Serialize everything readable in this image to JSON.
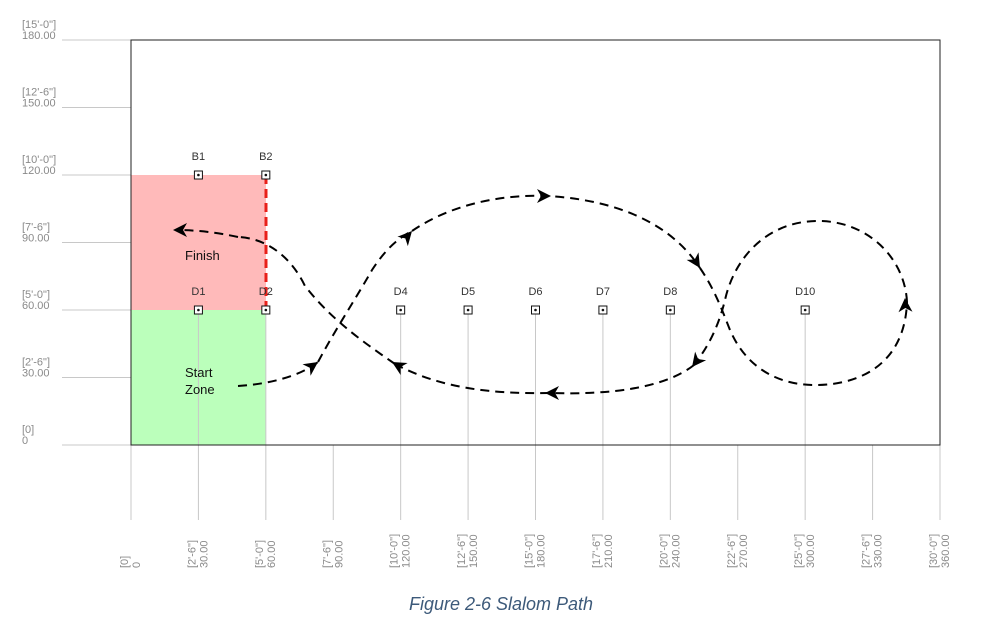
{
  "figure": {
    "caption": "Figure 2-6 Slalom Path"
  },
  "axes": {
    "x_ticks": [
      {
        "ft": "[0]",
        "in": "0",
        "value": 0
      },
      {
        "ft": "[2'-6\"]",
        "in": "30.00",
        "value": 30
      },
      {
        "ft": "[5'-0\"]",
        "in": "60.00",
        "value": 60
      },
      {
        "ft": "[7'-6\"]",
        "in": "90.00",
        "value": 90
      },
      {
        "ft": "[10'-0\"]",
        "in": "120.00",
        "value": 120
      },
      {
        "ft": "[12'-6\"]",
        "in": "150.00",
        "value": 150
      },
      {
        "ft": "[15'-0\"]",
        "in": "180.00",
        "value": 180
      },
      {
        "ft": "[17'-6\"]",
        "in": "210.00",
        "value": 210
      },
      {
        "ft": "[20'-0\"]",
        "in": "240.00",
        "value": 240
      },
      {
        "ft": "[22'-6\"]",
        "in": "270.00",
        "value": 270
      },
      {
        "ft": "[25'-0\"]",
        "in": "300.00",
        "value": 300
      },
      {
        "ft": "[27'-6\"]",
        "in": "330.00",
        "value": 330
      },
      {
        "ft": "[30'-0\"]",
        "in": "360.00",
        "value": 360
      }
    ],
    "y_ticks": [
      {
        "ft": "[15'-0\"]",
        "in": "180.00",
        "value": 180
      },
      {
        "ft": "[12'-6\"]",
        "in": "150.00",
        "value": 150
      },
      {
        "ft": "[10'-0\"]",
        "in": "120.00",
        "value": 120
      },
      {
        "ft": "[7'-6\"]",
        "in": "90.00",
        "value": 90
      },
      {
        "ft": "[5'-0\"]",
        "in": "60.00",
        "value": 60
      },
      {
        "ft": "[2'-6\"]",
        "in": "30.00",
        "value": 30
      },
      {
        "ft": "[0]",
        "in": "0",
        "value": 0
      }
    ]
  },
  "zones": {
    "finish": {
      "label": "Finish",
      "color": "#ffbaba"
    },
    "start": {
      "label_line1": "Start",
      "label_line2": "Zone",
      "color": "#bbffbb"
    },
    "finish_line_color": "#e8201a"
  },
  "markers": [
    {
      "label": "B1",
      "x": 30,
      "y": 120
    },
    {
      "label": "B2",
      "x": 60,
      "y": 120
    },
    {
      "label": "D1",
      "x": 30,
      "y": 60
    },
    {
      "label": "D2",
      "x": 60,
      "y": 60
    },
    {
      "label": "D4",
      "x": 120,
      "y": 60
    },
    {
      "label": "D5",
      "x": 150,
      "y": 60
    },
    {
      "label": "D6",
      "x": 180,
      "y": 60
    },
    {
      "label": "D7",
      "x": 210,
      "y": 60
    },
    {
      "label": "D8",
      "x": 240,
      "y": 60
    },
    {
      "label": "D10",
      "x": 300,
      "y": 60
    }
  ]
}
